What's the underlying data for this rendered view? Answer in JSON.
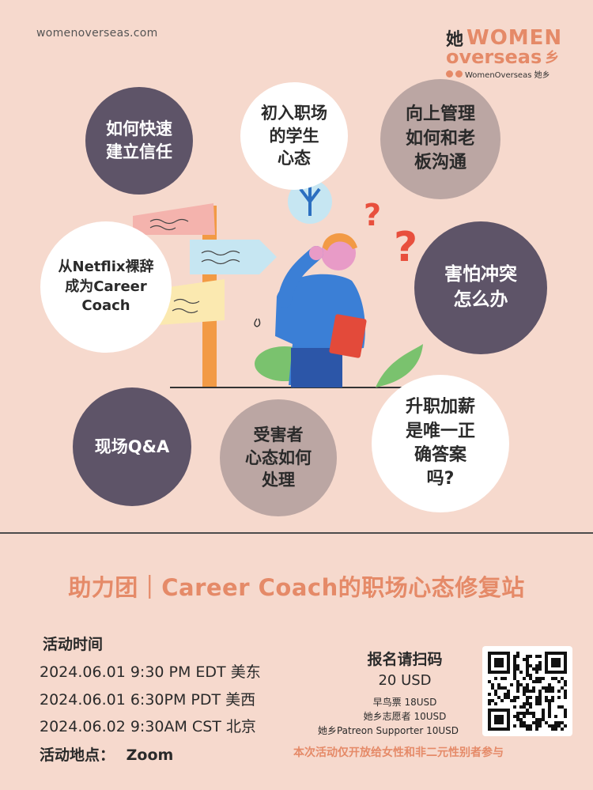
{
  "header": {
    "site": "womenoverseas.com",
    "logo_cn": "她",
    "logo_women": "WOMEN",
    "logo_overseas": "overseas",
    "logo_xiang": "乡",
    "logo_sub": "WomenOverseas 她乡"
  },
  "bubbles": [
    {
      "text": "如何快速\n建立信任"
    },
    {
      "text": "初入职场\n的学生\n心态"
    },
    {
      "text": "向上管理\n如何和老\n板沟通"
    },
    {
      "text": "从Netflix裸辞\n成为Career\nCoach"
    },
    {
      "text": "害怕冲突\n怎么办"
    },
    {
      "text": "现场Q&A"
    },
    {
      "text": "受害者\n心态如何\n处理"
    },
    {
      "text": "升职加薪\n是唯一正\n确答案\n吗?"
    }
  ],
  "title": "助力团｜Career Coach的职场心态修复站",
  "schedule": {
    "heading": "活动时间",
    "times": [
      "2024.06.01 9:30 PM EDT 美东",
      "2024.06.01 6:30PM PDT 美西",
      "2024.06.02 9:30AM CST 北京"
    ],
    "location_label": "活动地点：",
    "location_value": "Zoom"
  },
  "registration": {
    "heading": "报名请扫码",
    "price": "20 USD",
    "early": "早鸟票 18USD",
    "volunteer": "她乡志愿者 10USD",
    "patreon": "她乡Patreon Supporter 10USD",
    "note": "本次活动仅开放给女性和非二元性别者参与"
  },
  "colors": {
    "accent": "#e58a68",
    "background": "#f6d9cd",
    "dark_bubble": "#5e5468",
    "taupe_bubble": "#bba6a3"
  }
}
